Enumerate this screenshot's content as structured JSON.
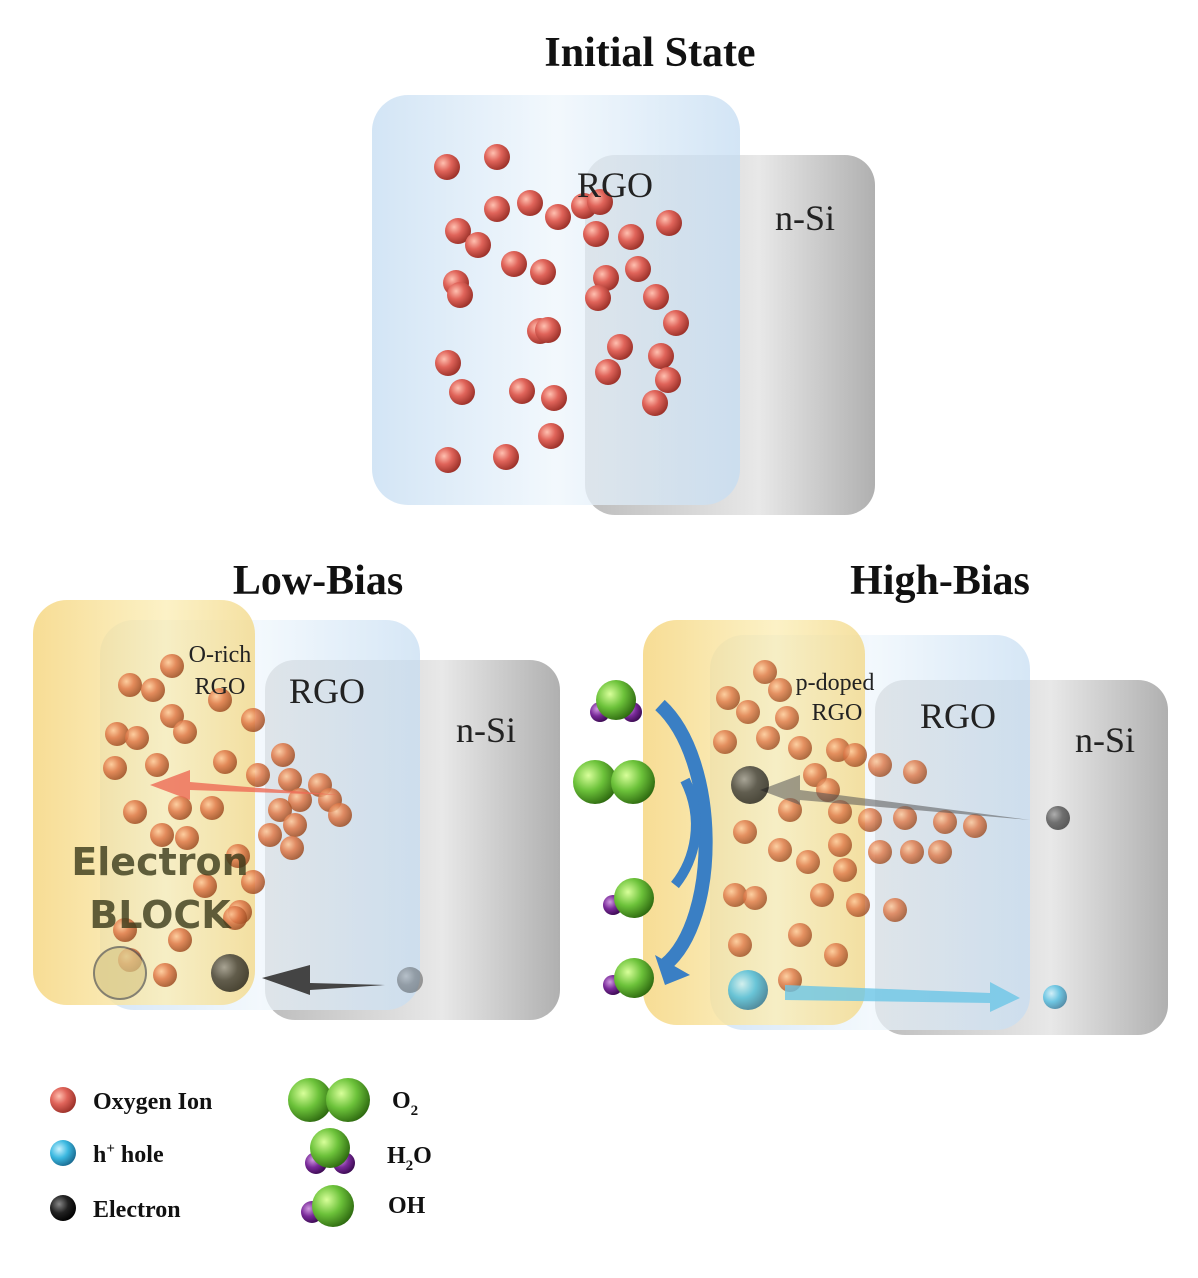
{
  "initial": {
    "title": "Initial State",
    "rgo": "RGO",
    "nsi": "n-Si"
  },
  "low": {
    "title": "Low-Bias",
    "orich_1": "O-rich",
    "orich_2": "RGO",
    "rgo": "RGO",
    "nsi": "n-Si",
    "block_1": "Electron",
    "block_2": "BLOCK"
  },
  "high": {
    "title": "High-Bias",
    "pdoped_1": "p-doped",
    "pdoped_2": "RGO",
    "rgo": "RGO",
    "nsi": "n-Si"
  },
  "legend": {
    "oxygen": "Oxygen Ion",
    "hole": {
      "base": "h",
      "sup": "+",
      "text": " hole"
    },
    "electron": "Electron",
    "o2": {
      "base": "O",
      "sub": "2"
    },
    "h2o": {
      "base": "H",
      "sub": "2",
      "rest": "O"
    },
    "oh": "OH"
  },
  "colors": {
    "oxygen_ion": "#e0645a",
    "hole": "#3bb8e0",
    "electron": "#111111",
    "oxygen_molecule": "#6cc23a",
    "hydrogen": "#7a2a9a",
    "rgo_film": "#cfe3f5",
    "o_rich_layer": "#f7dc8a",
    "n_si": "#d5d5d5",
    "arrow_blue": "#3a7fc4"
  }
}
